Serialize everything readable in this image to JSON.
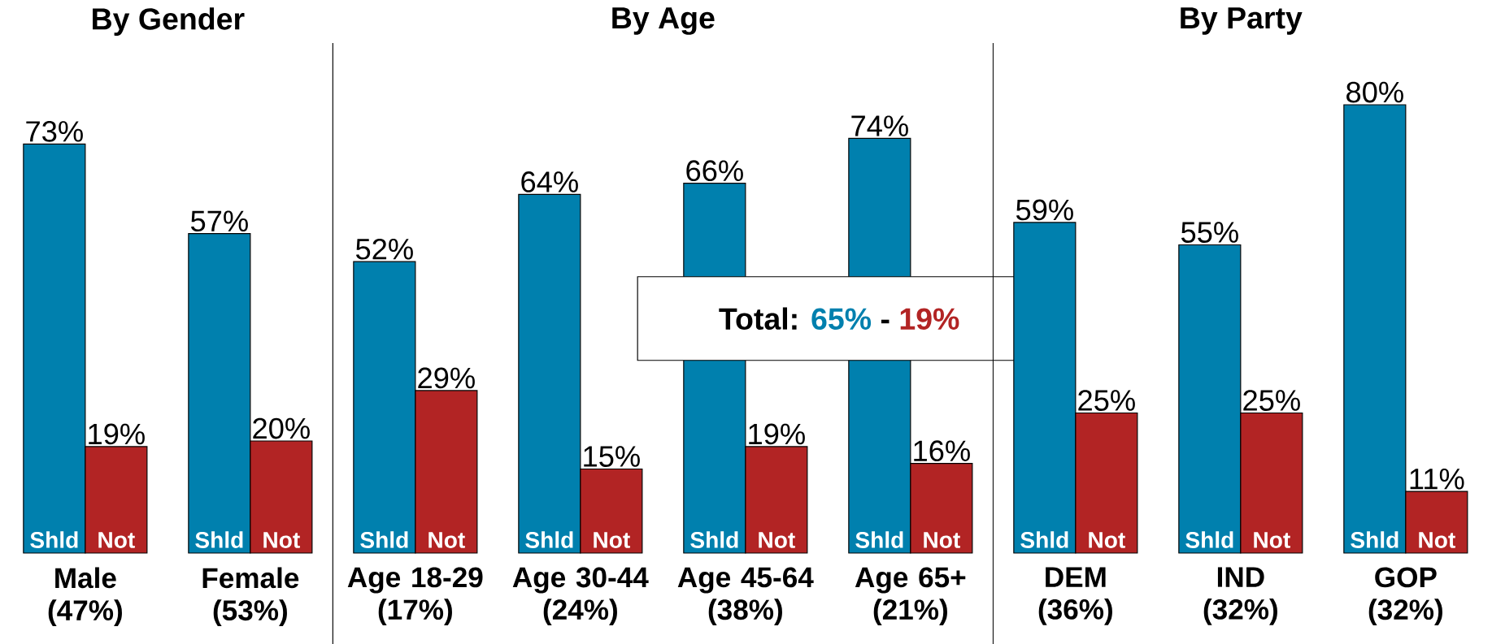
{
  "chart_data": [
    {
      "type": "bar",
      "title": "By Gender",
      "categories": [
        "Male (47%)",
        "Female (53%)"
      ],
      "series": [
        {
          "name": "Shld",
          "color": "#0080ae",
          "values": [
            73,
            57
          ],
          "value_labels": [
            "73%",
            "57%"
          ]
        },
        {
          "name": "Not",
          "color": "#b22424",
          "values": [
            19,
            20
          ],
          "value_labels": [
            "19%",
            "20%"
          ]
        }
      ],
      "legend": false
    },
    {
      "type": "bar",
      "title": "By Age",
      "categories": [
        "Age 18-29 (17%)",
        "Age 30-44 (24%)",
        "Age 45-64 (38%)",
        "Age 65+ (21%)"
      ],
      "series": [
        {
          "name": "Shld",
          "color": "#0080ae",
          "values": [
            52,
            64,
            66,
            74
          ],
          "value_labels": [
            "52%",
            "64%",
            "66%",
            "74%"
          ]
        },
        {
          "name": "Not",
          "color": "#b22424",
          "values": [
            29,
            15,
            19,
            16
          ],
          "value_labels": [
            "29%",
            "15%",
            "19%",
            "16%"
          ]
        }
      ],
      "legend": false,
      "annotations": [
        "Total:",
        "65%",
        "-",
        "19%"
      ]
    },
    {
      "type": "bar",
      "title": "By Party",
      "categories": [
        "DEM (36%)",
        "IND (32%)",
        "GOP (32%)"
      ],
      "series": [
        {
          "name": "Shld",
          "color": "#0080ae",
          "values": [
            59,
            55,
            80
          ],
          "value_labels": [
            "59%",
            "55%",
            "80%"
          ]
        },
        {
          "name": "Not",
          "color": "#b22424",
          "values": [
            25,
            25,
            11
          ],
          "value_labels": [
            "25%",
            "25%",
            "11%"
          ]
        }
      ],
      "legend": false
    }
  ]
}
